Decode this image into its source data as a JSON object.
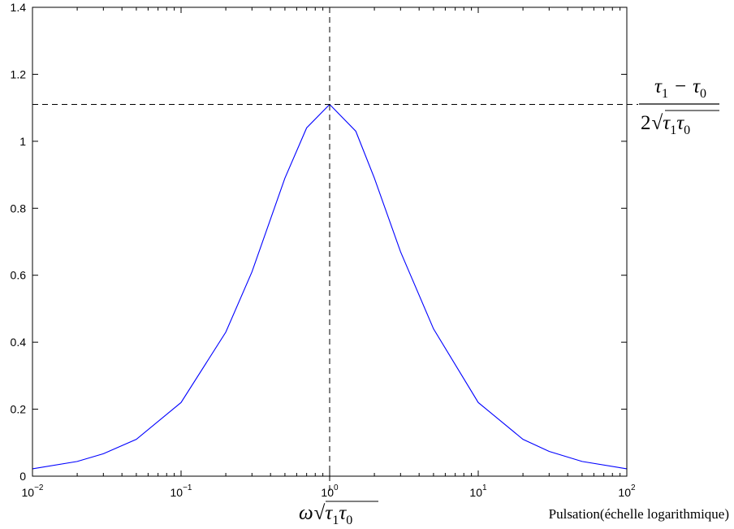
{
  "chart_data": {
    "type": "line",
    "x_scale": "log",
    "xlim": [
      0.01,
      100
    ],
    "ylim": [
      0,
      1.4
    ],
    "grid": false,
    "title": "",
    "xlabel": "Pulsation(échelle logarithmique)",
    "ylabel": "",
    "x_ticks": [
      0.01,
      0.1,
      1,
      10,
      100
    ],
    "x_tick_labels": [
      {
        "base": "10",
        "exp": "−2"
      },
      {
        "base": "10",
        "exp": "−1"
      },
      {
        "base": "10",
        "exp": "0"
      },
      {
        "base": "10",
        "exp": "1"
      },
      {
        "base": "10",
        "exp": "2"
      }
    ],
    "y_ticks": [
      0,
      0.2,
      0.4,
      0.6,
      0.8,
      1,
      1.2,
      1.4
    ],
    "y_tick_labels": [
      "0",
      "0.2",
      "0.4",
      "0.6",
      "0.8",
      "1",
      "1.2",
      "1.4"
    ],
    "series": [
      {
        "color": "#0000ff",
        "x": [
          0.01,
          0.02,
          0.03,
          0.05,
          0.1,
          0.2,
          0.3,
          0.5,
          0.7,
          1,
          1.5,
          2,
          3,
          5,
          10,
          20,
          30,
          50,
          100
        ],
        "y": [
          0.022,
          0.044,
          0.067,
          0.11,
          0.22,
          0.43,
          0.61,
          0.89,
          1.04,
          1.11,
          1.03,
          0.89,
          0.67,
          0.44,
          0.22,
          0.11,
          0.074,
          0.044,
          0.022
        ]
      }
    ],
    "reference_lines": {
      "vertical_x": 1,
      "horizontal_y": 1.11,
      "style": "dashed",
      "color": "#000000"
    },
    "annotations": {
      "peak_label": {
        "numerator": "τ1 − τ0",
        "denominator": "2√(τ1τ0)"
      },
      "x_marker_label": "ω√(τ1τ0)"
    }
  }
}
